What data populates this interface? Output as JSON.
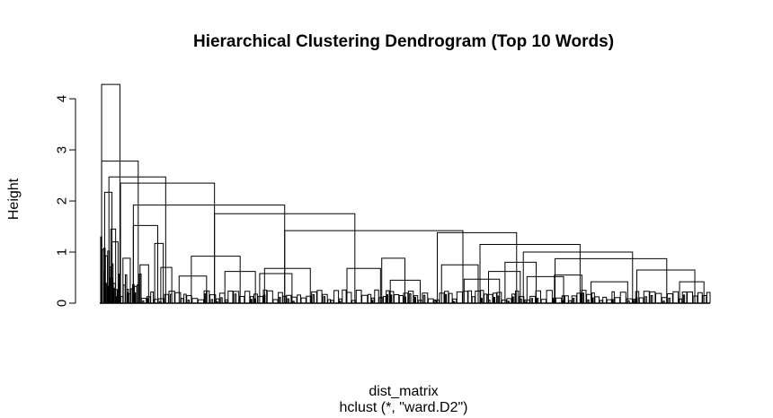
{
  "chart_data": {
    "type": "dendrogram",
    "title": "Hierarchical Clustering Dendrogram (Top 10 Words)",
    "xlabel": "dist_matrix",
    "sublabel": "hclust (*, \"ward.D2\")",
    "ylabel": "Height",
    "ylim": [
      0,
      4.3
    ],
    "yticks": [
      0,
      1,
      2,
      3,
      4
    ],
    "ytick_labels": [
      "0",
      "1",
      "2",
      "3",
      "4"
    ],
    "grid": false,
    "line_color": "#000000",
    "xdomain": [
      0,
      1
    ],
    "links": [
      {
        "x1": 0.003,
        "x2": 0.033,
        "h": 4.28
      },
      {
        "x1": 0.003,
        "x2": 0.063,
        "h": 2.78
      },
      {
        "x1": 0.015,
        "x2": 0.108,
        "h": 2.47
      },
      {
        "x1": 0.034,
        "x2": 0.188,
        "h": 2.35
      },
      {
        "x1": 0.055,
        "x2": 0.303,
        "h": 1.92
      },
      {
        "x1": 0.188,
        "x2": 0.418,
        "h": 1.75
      },
      {
        "x1": 0.303,
        "x2": 0.595,
        "h": 1.42
      },
      {
        "x1": 0.553,
        "x2": 0.683,
        "h": 1.38
      },
      {
        "x1": 0.623,
        "x2": 0.787,
        "h": 1.15
      },
      {
        "x1": 0.694,
        "x2": 0.873,
        "h": 1.0
      },
      {
        "x1": 0.746,
        "x2": 0.929,
        "h": 0.87
      },
      {
        "x1": 0.664,
        "x2": 0.715,
        "h": 0.8
      },
      {
        "x1": 0.637,
        "x2": 0.689,
        "h": 0.62
      },
      {
        "x1": 0.055,
        "x2": 0.095,
        "h": 1.52
      },
      {
        "x1": 0.09,
        "x2": 0.104,
        "h": 1.17
      },
      {
        "x1": 0.008,
        "x2": 0.02,
        "h": 2.17
      },
      {
        "x1": 0.018,
        "x2": 0.026,
        "h": 1.45
      },
      {
        "x1": 0.02,
        "x2": 0.03,
        "h": 1.2
      },
      {
        "x1": 0.15,
        "x2": 0.23,
        "h": 0.92
      },
      {
        "x1": 0.13,
        "x2": 0.175,
        "h": 0.53
      },
      {
        "x1": 0.205,
        "x2": 0.255,
        "h": 0.62
      },
      {
        "x1": 0.27,
        "x2": 0.345,
        "h": 0.68
      },
      {
        "x1": 0.262,
        "x2": 0.315,
        "h": 0.58
      },
      {
        "x1": 0.405,
        "x2": 0.46,
        "h": 0.68
      },
      {
        "x1": 0.462,
        "x2": 0.5,
        "h": 0.88
      },
      {
        "x1": 0.476,
        "x2": 0.525,
        "h": 0.45
      },
      {
        "x1": 0.56,
        "x2": 0.62,
        "h": 0.75
      },
      {
        "x1": 0.597,
        "x2": 0.655,
        "h": 0.47
      },
      {
        "x1": 0.7,
        "x2": 0.76,
        "h": 0.52
      },
      {
        "x1": 0.745,
        "x2": 0.79,
        "h": 0.55
      },
      {
        "x1": 0.805,
        "x2": 0.865,
        "h": 0.42
      },
      {
        "x1": 0.88,
        "x2": 0.975,
        "h": 0.65
      },
      {
        "x1": 0.95,
        "x2": 0.99,
        "h": 0.42
      },
      {
        "x1": 0.066,
        "x2": 0.08,
        "h": 0.75
      },
      {
        "x1": 0.1,
        "x2": 0.118,
        "h": 0.7
      },
      {
        "x1": 0.038,
        "x2": 0.05,
        "h": 0.88
      }
    ]
  }
}
